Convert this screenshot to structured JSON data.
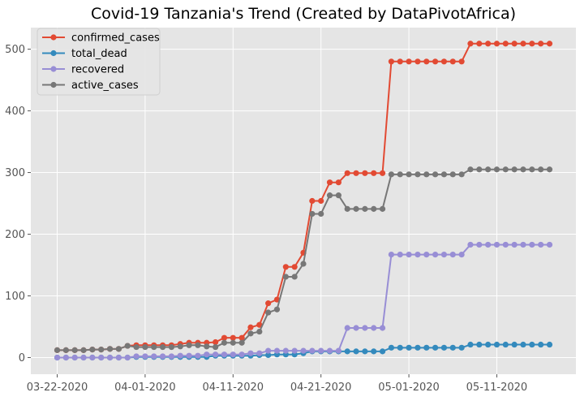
{
  "chart_data": {
    "type": "line",
    "title": "Covid-19 Tanzania's Trend (Created by DataPivotAfrica)",
    "xlabel": "",
    "ylabel": "",
    "ylim": [
      -27,
      535
    ],
    "yticks": [
      0,
      100,
      200,
      300,
      400,
      500
    ],
    "x_tick_labels": [
      "03-22-2020",
      "04-01-2020",
      "04-11-2020",
      "04-21-2020",
      "05-01-2020",
      "05-11-2020"
    ],
    "x_tick_days": [
      0,
      10,
      20,
      30,
      40,
      50
    ],
    "xlim_days": [
      -3,
      59
    ],
    "grid": true,
    "legend_position": "top-left",
    "x": [
      "03-22-2020",
      "03-23-2020",
      "03-24-2020",
      "03-25-2020",
      "03-26-2020",
      "03-27-2020",
      "03-28-2020",
      "03-29-2020",
      "03-30-2020",
      "03-31-2020",
      "04-01-2020",
      "04-02-2020",
      "04-03-2020",
      "04-04-2020",
      "04-05-2020",
      "04-06-2020",
      "04-07-2020",
      "04-08-2020",
      "04-09-2020",
      "04-10-2020",
      "04-11-2020",
      "04-12-2020",
      "04-13-2020",
      "04-14-2020",
      "04-15-2020",
      "04-16-2020",
      "04-17-2020",
      "04-18-2020",
      "04-19-2020",
      "04-20-2020",
      "04-21-2020",
      "04-22-2020",
      "04-23-2020",
      "04-24-2020",
      "04-25-2020",
      "04-26-2020",
      "04-27-2020",
      "04-28-2020",
      "04-29-2020",
      "04-30-2020",
      "05-01-2020",
      "05-02-2020",
      "05-03-2020",
      "05-04-2020",
      "05-05-2020",
      "05-06-2020",
      "05-07-2020",
      "05-08-2020",
      "05-09-2020",
      "05-10-2020",
      "05-11-2020",
      "05-12-2020",
      "05-13-2020",
      "05-14-2020",
      "05-15-2020",
      "05-16-2020",
      "05-17-2020"
    ],
    "series": [
      {
        "name": "confirmed_cases",
        "color": "#E24A33",
        "values": [
          12,
          12,
          12,
          12,
          13,
          13,
          14,
          14,
          19,
          20,
          20,
          20,
          20,
          20,
          22,
          24,
          24,
          24,
          25,
          32,
          32,
          32,
          49,
          53,
          88,
          94,
          147,
          147,
          170,
          254,
          254,
          284,
          284,
          299,
          299,
          299,
          299,
          299,
          480,
          480,
          480,
          480,
          480,
          480,
          480,
          480,
          480,
          509,
          509,
          509,
          509,
          509,
          509,
          509,
          509,
          509,
          509
        ]
      },
      {
        "name": "total_dead",
        "color": "#348ABD",
        "values": [
          0,
          0,
          0,
          0,
          0,
          0,
          0,
          0,
          0,
          1,
          1,
          1,
          1,
          1,
          1,
          1,
          1,
          1,
          3,
          3,
          3,
          3,
          3,
          4,
          4,
          5,
          5,
          5,
          7,
          10,
          10,
          10,
          10,
          10,
          10,
          10,
          10,
          10,
          16,
          16,
          16,
          16,
          16,
          16,
          16,
          16,
          16,
          21,
          21,
          21,
          21,
          21,
          21,
          21,
          21,
          21,
          21
        ]
      },
      {
        "name": "recovered",
        "color": "#988ED5",
        "values": [
          0,
          0,
          0,
          0,
          0,
          0,
          0,
          0,
          0,
          2,
          2,
          2,
          2,
          2,
          3,
          3,
          3,
          5,
          5,
          5,
          5,
          5,
          7,
          7,
          11,
          11,
          11,
          11,
          11,
          11,
          11,
          11,
          11,
          48,
          48,
          48,
          48,
          48,
          167,
          167,
          167,
          167,
          167,
          167,
          167,
          167,
          167,
          183,
          183,
          183,
          183,
          183,
          183,
          183,
          183,
          183,
          183
        ]
      },
      {
        "name": "active_cases",
        "color": "#777777",
        "values": [
          12,
          12,
          12,
          12,
          13,
          13,
          14,
          14,
          19,
          17,
          17,
          17,
          17,
          17,
          18,
          20,
          20,
          18,
          17,
          24,
          24,
          24,
          39,
          42,
          73,
          78,
          131,
          131,
          152,
          233,
          233,
          263,
          263,
          241,
          241,
          241,
          241,
          241,
          297,
          297,
          297,
          297,
          297,
          297,
          297,
          297,
          297,
          305,
          305,
          305,
          305,
          305,
          305,
          305,
          305,
          305,
          305
        ]
      }
    ]
  }
}
